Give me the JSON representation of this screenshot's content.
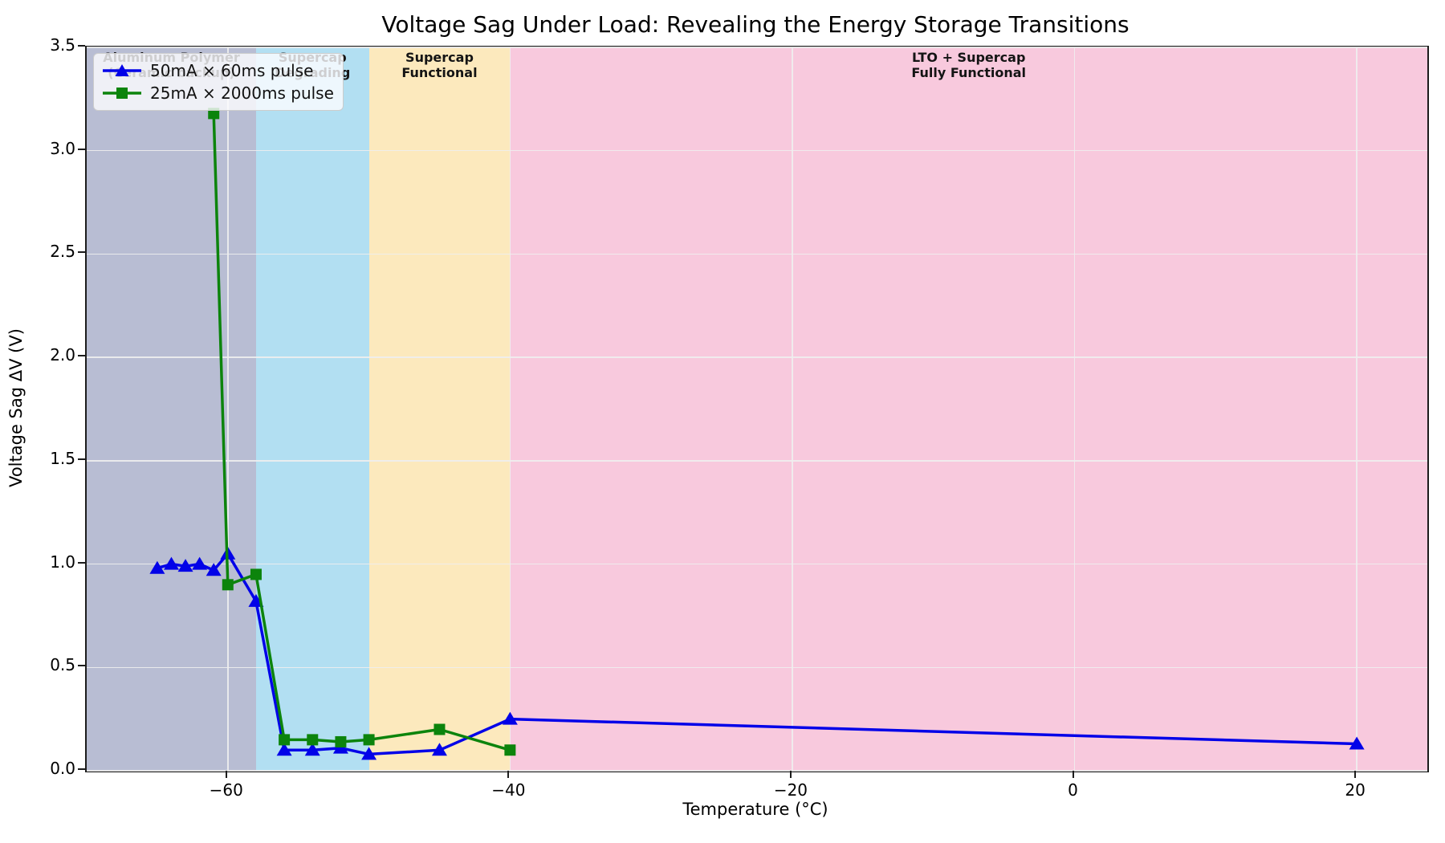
{
  "chart_data": {
    "type": "line",
    "title": "Voltage Sag Under Load: Revealing the Energy Storage Transitions",
    "xlabel": "Temperature (°C)",
    "ylabel": "Voltage Sag ΔV (V)",
    "xlim": [
      -70,
      25
    ],
    "ylim": [
      0,
      3.5
    ],
    "grid": true,
    "grid_color": "#eeeeee",
    "legend_position": "upper left",
    "xticks": {
      "values": [
        -60,
        -40,
        -20,
        0,
        20
      ],
      "labels": [
        "−60",
        "−40",
        "−20",
        "0",
        "20"
      ]
    },
    "yticks": {
      "values": [
        0,
        0.5,
        1.0,
        1.5,
        2.0,
        2.5,
        3.0,
        3.5
      ],
      "labels": [
        "0.0",
        "0.5",
        "1.0",
        "1.5",
        "2.0",
        "2.5",
        "3.0",
        "3.5"
      ]
    },
    "series": [
      {
        "name": "50mA × 60ms pulse",
        "color": "#0202e8",
        "marker": "triangle",
        "x": [
          -65,
          -64,
          -63,
          -62,
          -61,
          -60,
          -58,
          -56,
          -54,
          -52,
          -50,
          -45,
          -40,
          20
        ],
        "y": [
          0.98,
          1.0,
          0.99,
          1.0,
          0.97,
          1.05,
          0.82,
          0.1,
          0.1,
          0.11,
          0.08,
          0.1,
          0.25,
          0.13
        ]
      },
      {
        "name": "25mA × 2000ms pulse",
        "color": "#0c840c",
        "marker": "square",
        "x": [
          -61,
          -60,
          -58,
          -56,
          -54,
          -52,
          -50,
          -45,
          -40
        ],
        "y": [
          3.18,
          0.9,
          0.95,
          0.15,
          0.15,
          0.14,
          0.15,
          0.2,
          0.1
        ]
      }
    ],
    "regions": [
      {
        "label_line1": "Aluminum Polymer",
        "label_line2": "(Ceramic backup)",
        "x_start": -70,
        "x_end": -58,
        "color": "#b8bdd3"
      },
      {
        "label_line1": "Supercap",
        "label_line2": "Degrading",
        "x_start": -58,
        "x_end": -50,
        "color": "#b2dff2"
      },
      {
        "label_line1": "Supercap",
        "label_line2": "Functional",
        "x_start": -50,
        "x_end": -40,
        "color": "#fce9bd"
      },
      {
        "label_line1": "LTO + Supercap",
        "label_line2": "Fully Functional",
        "x_start": -40,
        "x_end": 25,
        "color": "#f8c9dd"
      }
    ]
  }
}
